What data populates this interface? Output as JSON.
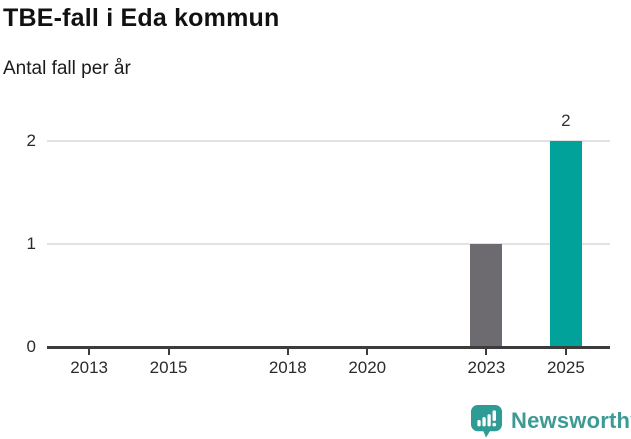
{
  "header": {
    "title": "TBE-fall i Eda kommun",
    "subtitle": "Antal fall per år"
  },
  "chart_data": {
    "type": "bar",
    "title": "TBE-fall i Eda kommun",
    "subtitle": "Antal fall per år",
    "x": [
      2023,
      2025
    ],
    "values": [
      1,
      2
    ],
    "bar_colors": [
      "#6d6a70",
      "#00a29a"
    ],
    "bar_labels": [
      "",
      "2"
    ],
    "xticks": [
      "2013",
      "2015",
      "2018",
      "2020",
      "2023",
      "2025"
    ],
    "xtick_years": [
      2013,
      2015,
      2018,
      2020,
      2023,
      2025
    ],
    "yticks": [
      0,
      1,
      2
    ],
    "xlim": [
      2011.94,
      2026.11
    ],
    "ylim": [
      0,
      2
    ],
    "grid": "horizontal-only",
    "legend": "none",
    "colors": {
      "grid": "#e2e2e2",
      "axis": "#3c3c3c",
      "tick_label": "#2b2b2b",
      "value_label": "#333333"
    }
  },
  "footer": {
    "brand": "Newsworthy",
    "brand_color": "#3d9a94",
    "icon": "newsworthy-chart-bubble-icon"
  }
}
